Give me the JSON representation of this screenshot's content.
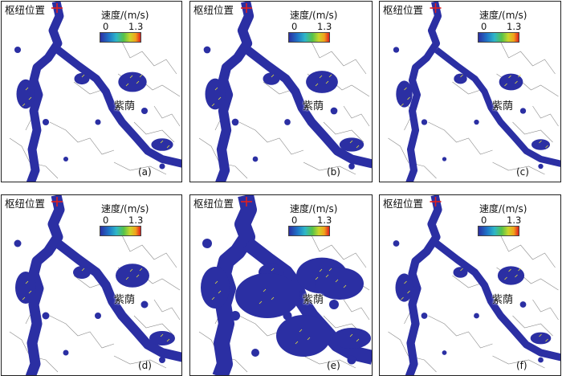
{
  "figure": {
    "hub_label": "枢纽位置",
    "legend_title": "速度/(m/s)",
    "legend_min": "0",
    "legend_max": "1.3",
    "place_label": "紫荫",
    "colors": {
      "flood_area": "#2b2fa3",
      "river_edge": "#7fcf3c",
      "arrows": "#e8e23a",
      "hub_marker": "#e01f1f",
      "boundary": "#8a8a8a",
      "coast": "#3a3a3a"
    },
    "panels": [
      {
        "letter": "(a)",
        "flood_extent": 0.35
      },
      {
        "letter": "(b)",
        "flood_extent": 0.45
      },
      {
        "letter": "(c)",
        "flood_extent": 0.22
      },
      {
        "letter": "(d)",
        "flood_extent": 0.5
      },
      {
        "letter": "(e)",
        "flood_extent": 1.0
      },
      {
        "letter": "(f)",
        "flood_extent": 0.3
      }
    ]
  }
}
